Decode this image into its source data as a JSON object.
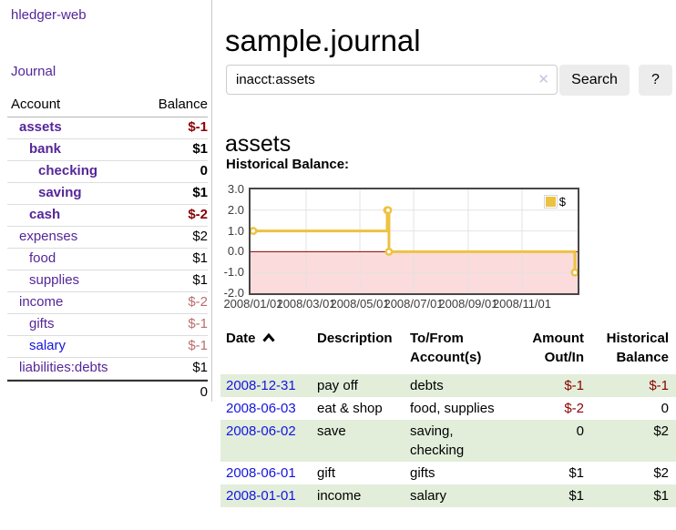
{
  "app": {
    "title": "hledger-web"
  },
  "nav": {
    "journal": "Journal"
  },
  "colors": {
    "link_purple": "#552699",
    "link_blue": "#1414e0",
    "negative_strong": "#8b0000",
    "negative_muted": "#bb6d6d",
    "row_shade_green": "#e2eeda",
    "chart_line_gold": "#edc240"
  },
  "sidebar": {
    "headers": {
      "account": "Account",
      "balance": "Balance"
    },
    "accounts": [
      {
        "name": "assets",
        "indent": 1,
        "bold": true,
        "link": "purple",
        "balance": "$-1",
        "balance_class": "neg-strong"
      },
      {
        "name": "bank",
        "indent": 2,
        "bold": true,
        "link": "purple",
        "balance": "$1",
        "balance_class": ""
      },
      {
        "name": "checking",
        "indent": 3,
        "bold": true,
        "link": "purple",
        "balance": "0",
        "balance_class": ""
      },
      {
        "name": "saving",
        "indent": 3,
        "bold": true,
        "link": "purple",
        "balance": "$1",
        "balance_class": ""
      },
      {
        "name": "cash",
        "indent": 2,
        "bold": true,
        "link": "purple",
        "balance": "$-2",
        "balance_class": "neg-strong"
      },
      {
        "name": "expenses",
        "indent": 1,
        "bold": false,
        "link": "purple",
        "balance": "$2",
        "balance_class": ""
      },
      {
        "name": "food",
        "indent": 2,
        "bold": false,
        "link": "purple",
        "balance": "$1",
        "balance_class": ""
      },
      {
        "name": "supplies",
        "indent": 2,
        "bold": false,
        "link": "purple",
        "balance": "$1",
        "balance_class": ""
      },
      {
        "name": "income",
        "indent": 1,
        "bold": false,
        "link": "purple",
        "balance": "$-2",
        "balance_class": "neg-muted"
      },
      {
        "name": "gifts",
        "indent": 2,
        "bold": false,
        "link": "purple",
        "balance": "$-1",
        "balance_class": "neg-muted"
      },
      {
        "name": "salary",
        "indent": 2,
        "bold": false,
        "link": "blue",
        "balance": "$-1",
        "balance_class": "neg-muted"
      },
      {
        "name": "liabilities:debts",
        "indent": 1,
        "bold": false,
        "link": "purple",
        "balance": "$1",
        "balance_class": ""
      }
    ],
    "total": "0"
  },
  "main": {
    "title": "sample.journal",
    "account_heading": "assets",
    "chart_title": "Historical Balance:"
  },
  "search": {
    "value": "inacct:assets",
    "clear_icon": "✕",
    "button": "Search",
    "help": "?"
  },
  "chart_data": {
    "type": "line",
    "title": "Historical Balance:",
    "series": [
      {
        "name": "$",
        "color": "#edc240",
        "step": true,
        "points": [
          [
            "2008-01-01",
            1
          ],
          [
            "2008-06-01",
            2
          ],
          [
            "2008-06-02",
            2
          ],
          [
            "2008-06-03",
            0
          ],
          [
            "2008-12-31",
            -1
          ]
        ]
      }
    ],
    "xlim": [
      "2008-01-01",
      "2008-12-31"
    ],
    "ylim": [
      -2,
      3
    ],
    "y_ticks": [
      "3.0",
      "2.0",
      "1.0",
      "0.0",
      "-1.0",
      "-2.0"
    ],
    "x_ticks": [
      "2008/01/01",
      "2008/03/01",
      "2008/05/01",
      "2008/07/01",
      "2008/09/01",
      "2008/11/01"
    ],
    "legend": "$",
    "legend_position": "top-right",
    "grid": true,
    "negative_region_color": "#fbdbdb",
    "zero_line_color": "#8b0000"
  },
  "register": {
    "headers": {
      "date": "Date",
      "description": "Description",
      "account_lines": [
        "To/From",
        "Account(s)"
      ],
      "amount_lines": [
        "Amount",
        "Out/In"
      ],
      "balance_lines": [
        "Historical",
        "Balance"
      ]
    },
    "rows": [
      {
        "date": "2008-12-31",
        "description": "pay off",
        "account_lines": [
          "debts"
        ],
        "amount": "$-1",
        "amount_class": "neg",
        "balance": "$-1",
        "balance_class": "neg",
        "shaded": true
      },
      {
        "date": "2008-06-03",
        "description": "eat & shop",
        "account_lines": [
          "food, supplies"
        ],
        "amount": "$-2",
        "amount_class": "neg",
        "balance": "0",
        "balance_class": "",
        "shaded": false
      },
      {
        "date": "2008-06-02",
        "description": "save",
        "account_lines": [
          "saving,",
          "checking"
        ],
        "amount": "0",
        "amount_class": "",
        "balance": "$2",
        "balance_class": "",
        "shaded": true
      },
      {
        "date": "2008-06-01",
        "description": "gift",
        "account_lines": [
          "gifts"
        ],
        "amount": "$1",
        "amount_class": "",
        "balance": "$2",
        "balance_class": "",
        "shaded": false
      },
      {
        "date": "2008-01-01",
        "description": "income",
        "account_lines": [
          "salary"
        ],
        "amount": "$1",
        "amount_class": "",
        "balance": "$1",
        "balance_class": "",
        "shaded": true
      }
    ]
  }
}
